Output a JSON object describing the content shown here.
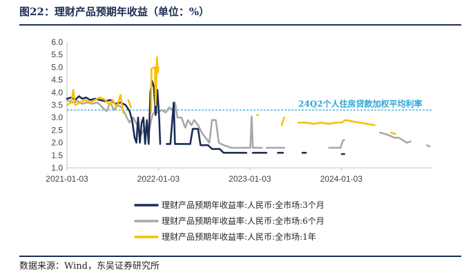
{
  "figure": {
    "title": "图22：理财产品预期年收益（单位：%）",
    "source": "数据来源：Wind，东吴证券研究所"
  },
  "chart_data": {
    "type": "line",
    "title": "图22：理财产品预期年收益（单位：%）",
    "xlabel": "",
    "ylabel": "",
    "x_ticks": [
      "2021-01-03",
      "2022-01-03",
      "2023-01-03",
      "2024-01-03"
    ],
    "y_ticks": [
      "1.0",
      "1.5",
      "2.0",
      "2.5",
      "3.0",
      "3.5",
      "4.0",
      "4.5",
      "5.0",
      "5.5",
      "6.0"
    ],
    "ylim": [
      1.0,
      6.0
    ],
    "xlim": [
      "2021-01-03",
      "2024-12-31"
    ],
    "grid": false,
    "legend_position": "bottom",
    "reference_line": {
      "label": "24Q2个人住房贷款加权平均利率",
      "value": 3.3,
      "color": "#2aa7d6"
    },
    "series": [
      {
        "name": "理财产品预期年收益率:人民币:全市场:3个月",
        "color": "#1c2c54",
        "points": [
          [
            "2021-01-03",
            3.75
          ],
          [
            "2021-01-20",
            3.8
          ],
          [
            "2021-02-05",
            3.7
          ],
          [
            "2021-02-20",
            3.85
          ],
          [
            "2021-03-05",
            3.75
          ],
          [
            "2021-03-20",
            3.8
          ],
          [
            "2021-04-05",
            3.7
          ],
          [
            "2021-04-25",
            3.75
          ],
          [
            "2021-05-15",
            3.7
          ],
          [
            "2021-06-05",
            3.65
          ],
          [
            "2021-06-25",
            3.7
          ],
          [
            "2021-07-15",
            3.55
          ],
          [
            "2021-08-05",
            3.6
          ],
          [
            "2021-08-25",
            3.5
          ],
          [
            "2021-09-10",
            3.25
          ],
          [
            "2021-09-20",
            2.9
          ],
          [
            "2021-09-30",
            2.2
          ],
          [
            "2021-10-07",
            2.0
          ],
          [
            "2021-10-14",
            3.0
          ],
          [
            "2021-10-21",
            2.0
          ],
          [
            "2021-10-28",
            2.8
          ],
          [
            "2021-11-04",
            3.0
          ],
          [
            "2021-11-11",
            1.95
          ],
          [
            "2021-11-18",
            2.9
          ],
          [
            "2021-11-25",
            1.95
          ],
          [
            "2021-12-02",
            4.0
          ],
          [
            "2021-12-09",
            4.45
          ],
          [
            "2021-12-16",
            4.2
          ],
          [
            "2021-12-23",
            3.1
          ],
          [
            "2021-12-30",
            4.1
          ],
          [
            "2022-01-06",
            3.0
          ],
          [
            "2022-01-10",
            1.95
          ],
          [
            "2022-01-12",
            null
          ],
          [
            "2022-02-05",
            1.95
          ],
          [
            "2022-02-20",
            1.95
          ],
          [
            "2022-03-05",
            3.6
          ],
          [
            "2022-03-10",
            1.95
          ],
          [
            "2022-03-20",
            1.95
          ],
          [
            "2022-04-20",
            1.95
          ],
          [
            "2022-05-10",
            1.95
          ],
          [
            "2022-05-20",
            2.55
          ],
          [
            "2022-06-10",
            2.55
          ],
          [
            "2022-06-20",
            1.9
          ],
          [
            "2022-07-20",
            1.9
          ],
          [
            "2022-08-05",
            1.75
          ],
          [
            "2022-09-05",
            1.75
          ],
          [
            "2022-09-20",
            1.6
          ],
          [
            "2022-12-20",
            1.6
          ],
          [
            "2022-12-25",
            null
          ],
          [
            "2023-01-15",
            1.6
          ],
          [
            "2023-03-10",
            1.6
          ],
          [
            "2023-03-15",
            null
          ],
          [
            "2023-04-25",
            1.6
          ],
          [
            "2023-05-15",
            1.6
          ],
          [
            "2023-05-20",
            null
          ],
          [
            "2023-08-01",
            1.6
          ],
          [
            "2023-08-15",
            1.6
          ],
          [
            "2023-08-20",
            null
          ],
          [
            "2024-01-05",
            1.55
          ],
          [
            "2024-01-15",
            1.55
          ]
        ]
      },
      {
        "name": "理财产品预期年收益率:人民币:全市场:6个月",
        "color": "#a8a8a8",
        "points": [
          [
            "2021-01-03",
            3.7
          ],
          [
            "2021-01-25",
            3.6
          ],
          [
            "2021-02-15",
            3.65
          ],
          [
            "2021-03-05",
            3.55
          ],
          [
            "2021-03-25",
            3.6
          ],
          [
            "2021-04-15",
            3.55
          ],
          [
            "2021-05-05",
            3.6
          ],
          [
            "2021-05-25",
            3.4
          ],
          [
            "2021-06-10",
            3.25
          ],
          [
            "2021-06-25",
            3.6
          ],
          [
            "2021-07-10",
            3.3
          ],
          [
            "2021-07-25",
            3.5
          ],
          [
            "2021-08-10",
            3.4
          ],
          [
            "2021-08-25",
            3.1
          ],
          [
            "2021-09-10",
            2.8
          ],
          [
            "2021-09-25",
            3.0
          ],
          [
            "2021-10-10",
            2.7
          ],
          [
            "2021-10-25",
            2.3
          ],
          [
            "2021-11-10",
            2.6
          ],
          [
            "2021-11-25",
            2.4
          ],
          [
            "2021-12-10",
            3.1
          ],
          [
            "2021-12-20",
            3.25
          ],
          [
            "2022-01-01",
            3.2
          ],
          [
            "2022-01-15",
            3.3
          ],
          [
            "2022-02-01",
            3.2
          ],
          [
            "2022-02-15",
            3.4
          ],
          [
            "2022-03-01",
            3.3
          ],
          [
            "2022-03-10",
            3.6
          ],
          [
            "2022-03-20",
            3.0
          ],
          [
            "2022-04-05",
            3.0
          ],
          [
            "2022-04-20",
            2.6
          ],
          [
            "2022-05-01",
            2.9
          ],
          [
            "2022-05-15",
            2.7
          ],
          [
            "2022-05-25",
            2.9
          ],
          [
            "2022-06-10",
            2.7
          ],
          [
            "2022-06-25",
            2.4
          ],
          [
            "2022-07-10",
            2.2
          ],
          [
            "2022-07-25",
            2.0
          ],
          [
            "2022-08-05",
            2.9
          ],
          [
            "2022-08-20",
            2.9
          ],
          [
            "2022-09-01",
            2.0
          ],
          [
            "2022-09-20",
            1.9
          ],
          [
            "2022-10-20",
            1.8
          ],
          [
            "2022-12-20",
            1.8
          ],
          [
            "2023-01-05",
            1.8
          ],
          [
            "2023-01-10",
            3.05
          ],
          [
            "2023-01-15",
            1.8
          ],
          [
            "2023-02-20",
            1.8
          ],
          [
            "2023-02-25",
            null
          ],
          [
            "2023-03-10",
            1.8
          ],
          [
            "2023-05-20",
            1.8
          ],
          [
            "2023-05-25",
            null
          ],
          [
            "2023-11-15",
            1.8
          ],
          [
            "2023-12-20",
            1.8
          ],
          [
            "2023-12-31",
            1.8
          ],
          [
            "2024-01-10",
            2.1
          ],
          [
            "2024-01-15",
            2.1
          ],
          [
            "2024-01-18",
            null
          ],
          [
            "2024-06-05",
            2.4
          ],
          [
            "2024-06-25",
            2.35
          ],
          [
            "2024-07-10",
            2.3
          ],
          [
            "2024-08-01",
            2.2
          ],
          [
            "2024-08-20",
            2.2
          ],
          [
            "2024-09-05",
            2.1
          ],
          [
            "2024-09-20",
            2.0
          ],
          [
            "2024-10-05",
            2.05
          ],
          [
            "2024-10-10",
            null
          ],
          [
            "2024-12-10",
            1.9
          ],
          [
            "2024-12-20",
            1.85
          ]
        ]
      },
      {
        "name": "理财产品预期年收益率:人民币:全市场:1年",
        "color": "#f9c000",
        "points": [
          [
            "2021-01-03",
            3.5
          ],
          [
            "2021-01-20",
            3.6
          ],
          [
            "2021-01-28",
            4.1
          ],
          [
            "2021-02-05",
            3.5
          ],
          [
            "2021-02-25",
            3.6
          ],
          [
            "2021-03-15",
            3.7
          ],
          [
            "2021-04-05",
            3.6
          ],
          [
            "2021-04-25",
            3.7
          ],
          [
            "2021-05-15",
            3.8
          ],
          [
            "2021-06-05",
            3.7
          ],
          [
            "2021-06-20",
            3.5
          ],
          [
            "2021-07-05",
            3.7
          ],
          [
            "2021-07-20",
            3.4
          ],
          [
            "2021-08-05",
            3.9
          ],
          [
            "2021-08-15",
            3.2
          ],
          [
            "2021-08-18",
            null
          ],
          [
            "2021-09-05",
            3.7
          ],
          [
            "2021-09-15",
            3.4
          ],
          [
            "2021-09-18",
            null
          ],
          [
            "2021-12-05",
            3.2
          ],
          [
            "2021-12-06",
            4.95
          ],
          [
            "2021-12-20",
            5.0
          ],
          [
            "2021-12-23",
            3.5
          ],
          [
            "2021-12-28",
            5.4
          ],
          [
            "2022-01-01",
            4.8
          ],
          [
            "2022-01-03",
            5.0
          ],
          [
            "2022-01-05",
            null
          ],
          [
            "2023-02-01",
            3.1
          ],
          [
            "2023-02-05",
            3.1
          ],
          [
            "2023-02-08",
            null
          ],
          [
            "2023-05-10",
            2.7
          ],
          [
            "2023-05-20",
            3.0
          ],
          [
            "2023-05-22",
            null
          ],
          [
            "2023-07-15",
            2.8
          ],
          [
            "2023-08-15",
            2.8
          ],
          [
            "2023-09-15",
            2.75
          ],
          [
            "2023-10-15",
            2.8
          ],
          [
            "2023-11-15",
            2.75
          ],
          [
            "2023-12-15",
            2.8
          ],
          [
            "2024-01-05",
            2.8
          ],
          [
            "2024-01-20",
            2.9
          ],
          [
            "2024-02-15",
            2.85
          ],
          [
            "2024-03-15",
            2.8
          ],
          [
            "2024-04-15",
            2.75
          ],
          [
            "2024-05-15",
            2.7
          ],
          [
            "2024-05-20",
            null
          ],
          [
            "2024-07-20",
            2.4
          ],
          [
            "2024-08-05",
            2.35
          ]
        ]
      }
    ]
  }
}
